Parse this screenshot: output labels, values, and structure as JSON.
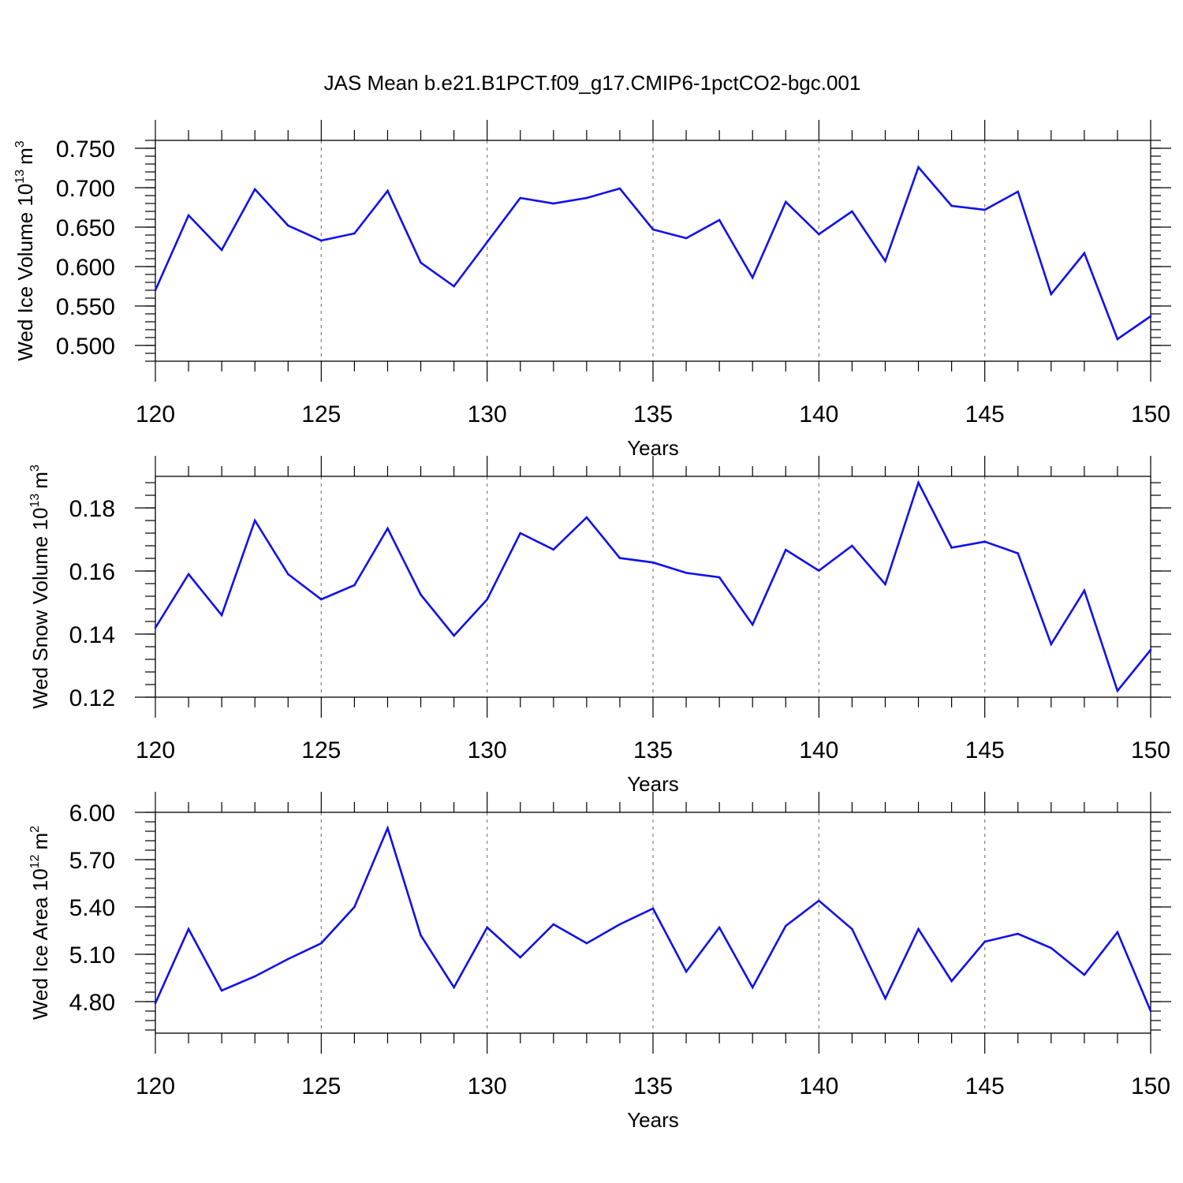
{
  "figure": {
    "title": "JAS Mean b.e21.B1PCT.f09_g17.CMIP6-1pctCO2-bgc.001"
  },
  "chart_data": [
    {
      "type": "line",
      "title": "",
      "xlabel": "Years",
      "ylabel": {
        "text": "Wed Ice Volume 10",
        "exponent": "13",
        "unit": "m",
        "unit_exponent": "3"
      },
      "xlim": [
        120,
        150
      ],
      "ylim": [
        0.48,
        0.76
      ],
      "x_ticks": [
        "120",
        "125",
        "130",
        "135",
        "140",
        "145",
        "150"
      ],
      "y_ticks": [
        {
          "value": 0.5,
          "label": "0.500"
        },
        {
          "value": 0.55,
          "label": "0.550"
        },
        {
          "value": 0.6,
          "label": "0.600"
        },
        {
          "value": 0.65,
          "label": "0.650"
        },
        {
          "value": 0.7,
          "label": "0.700"
        },
        {
          "value": 0.75,
          "label": "0.750"
        }
      ],
      "y_minor_step": 0.01,
      "grid": "vertical dashed at major x ticks",
      "series_color": "#1010ee",
      "x": [
        120,
        121,
        122,
        123,
        124,
        125,
        126,
        127,
        128,
        129,
        130,
        131,
        132,
        133,
        134,
        135,
        136,
        137,
        138,
        139,
        140,
        141,
        142,
        143,
        144,
        145,
        146,
        147,
        148,
        149,
        150
      ],
      "values": [
        0.57,
        0.665,
        0.621,
        0.698,
        0.652,
        0.633,
        0.642,
        0.696,
        0.605,
        0.575,
        0.631,
        0.687,
        0.68,
        0.687,
        0.699,
        0.647,
        0.636,
        0.659,
        0.586,
        0.682,
        0.641,
        0.67,
        0.607,
        0.726,
        0.677,
        0.672,
        0.695,
        0.565,
        0.617,
        0.508,
        0.537
      ]
    },
    {
      "type": "line",
      "title": "",
      "xlabel": "Years",
      "ylabel": {
        "text": "Wed Snow Volume 10",
        "exponent": "13",
        "unit": "m",
        "unit_exponent": "3"
      },
      "xlim": [
        120,
        150
      ],
      "ylim": [
        0.12,
        0.19
      ],
      "x_ticks": [
        "120",
        "125",
        "130",
        "135",
        "140",
        "145",
        "150"
      ],
      "y_ticks": [
        {
          "value": 0.12,
          "label": "0.12"
        },
        {
          "value": 0.14,
          "label": "0.14"
        },
        {
          "value": 0.16,
          "label": "0.16"
        },
        {
          "value": 0.18,
          "label": "0.18"
        }
      ],
      "y_minor_step": 0.004,
      "grid": "vertical dashed at major x ticks",
      "series_color": "#1010ee",
      "x": [
        120,
        121,
        122,
        123,
        124,
        125,
        126,
        127,
        128,
        129,
        130,
        131,
        132,
        133,
        134,
        135,
        136,
        137,
        138,
        139,
        140,
        141,
        142,
        143,
        144,
        145,
        146,
        147,
        148,
        149,
        150
      ],
      "values": [
        0.142,
        0.159,
        0.146,
        0.176,
        0.159,
        0.151,
        0.1555,
        0.1735,
        0.1525,
        0.1395,
        0.151,
        0.172,
        0.1668,
        0.177,
        0.1641,
        0.1627,
        0.1594,
        0.158,
        0.143,
        0.1667,
        0.1601,
        0.168,
        0.1558,
        0.188,
        0.1674,
        0.1693,
        0.1656,
        0.1368,
        0.1538,
        0.122,
        0.135
      ]
    },
    {
      "type": "line",
      "title": "",
      "xlabel": "Years",
      "ylabel": {
        "text": "Wed Ice Area 10",
        "exponent": "12",
        "unit": "m",
        "unit_exponent": "2"
      },
      "xlim": [
        120,
        150
      ],
      "ylim": [
        4.6,
        6.0
      ],
      "x_ticks": [
        "120",
        "125",
        "130",
        "135",
        "140",
        "145",
        "150"
      ],
      "y_ticks": [
        {
          "value": 4.8,
          "label": "4.80"
        },
        {
          "value": 5.1,
          "label": "5.10"
        },
        {
          "value": 5.4,
          "label": "5.40"
        },
        {
          "value": 5.7,
          "label": "5.70"
        },
        {
          "value": 6.0,
          "label": "6.00"
        }
      ],
      "y_minor_step": 0.06,
      "grid": "vertical dashed at major x ticks",
      "series_color": "#1010ee",
      "x": [
        120,
        121,
        122,
        123,
        124,
        125,
        126,
        127,
        128,
        129,
        130,
        131,
        132,
        133,
        134,
        135,
        136,
        137,
        138,
        139,
        140,
        141,
        142,
        143,
        144,
        145,
        146,
        147,
        148,
        149,
        150
      ],
      "values": [
        4.79,
        5.26,
        4.87,
        4.96,
        5.07,
        5.17,
        5.4,
        5.9,
        5.22,
        4.89,
        5.27,
        5.08,
        5.29,
        5.17,
        5.29,
        5.39,
        4.99,
        5.27,
        4.89,
        5.28,
        5.44,
        5.26,
        4.82,
        5.26,
        4.93,
        5.18,
        5.23,
        5.14,
        4.97,
        5.24,
        4.74
      ]
    }
  ]
}
